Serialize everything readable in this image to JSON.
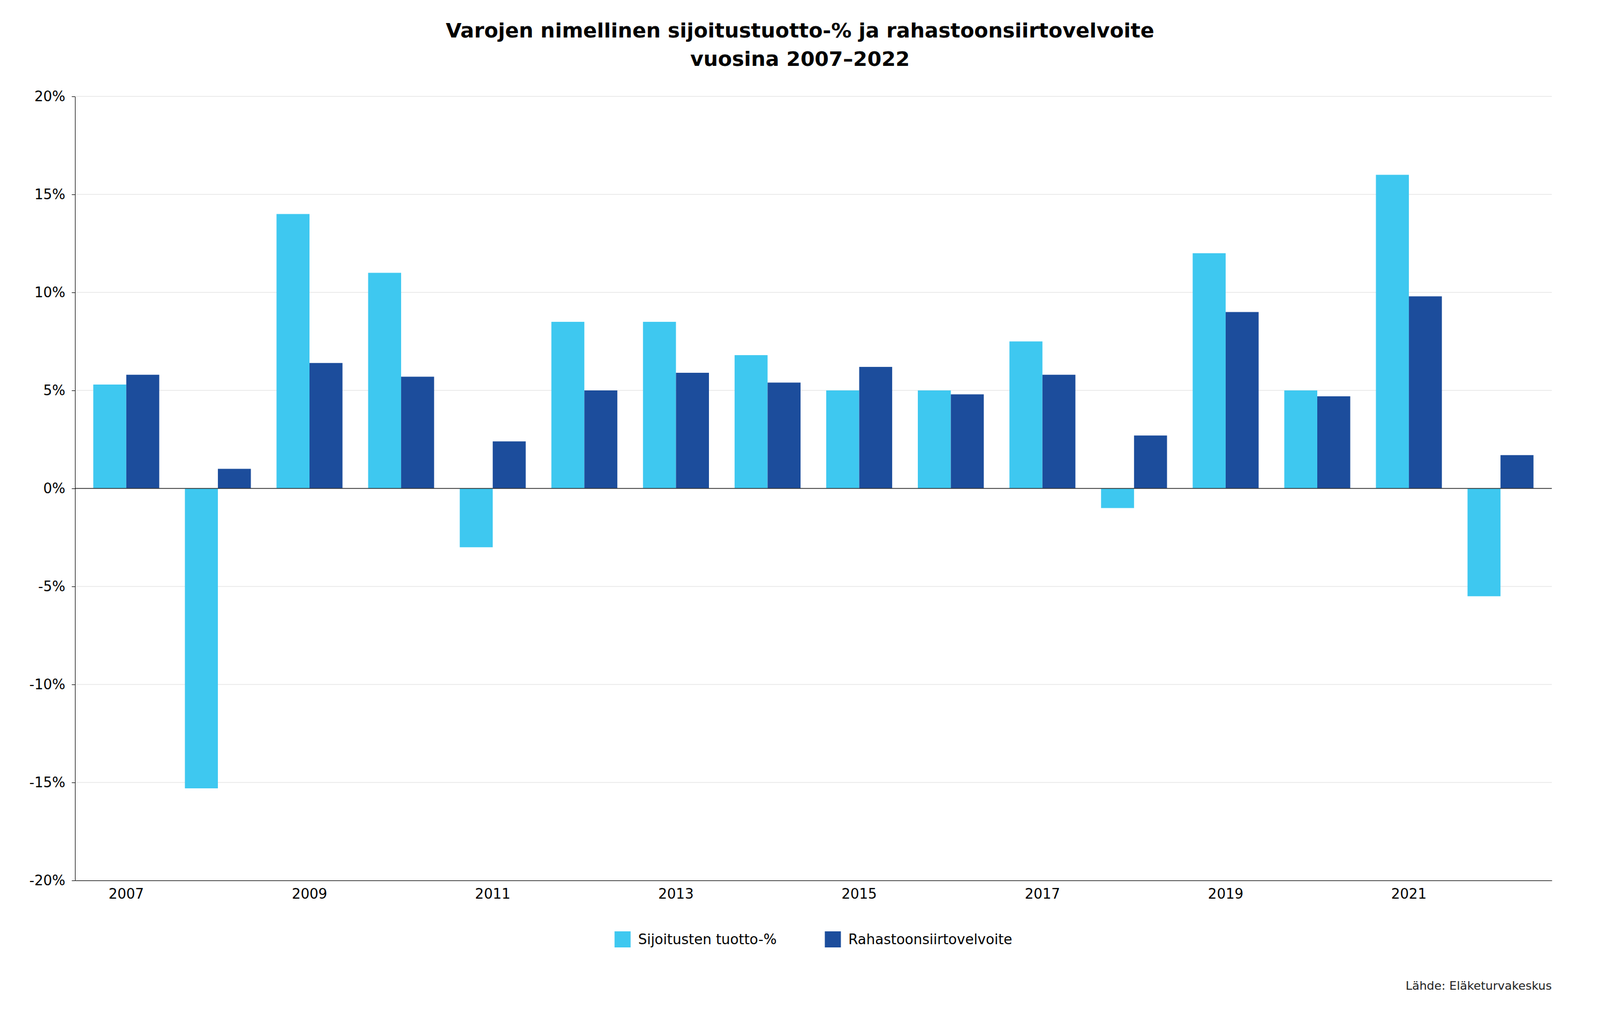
{
  "chart_data": {
    "type": "bar",
    "title": "Varojen nimellinen sijoitustuotto-% ja rahastoonsiirtovelvoite\nvuosina 2007–2022",
    "categories": [
      "2007",
      null,
      "2009",
      null,
      "2011",
      null,
      "2013",
      null,
      "2015",
      null,
      "2017",
      null,
      "2019",
      null,
      "2021",
      null
    ],
    "series": [
      {
        "name": "Sijoitusten tuotto-%",
        "color": "#3EC8F0",
        "values": [
          5.3,
          -15.3,
          14.0,
          11.0,
          -3.0,
          8.5,
          8.5,
          6.8,
          5.0,
          5.0,
          7.5,
          -1.0,
          12.0,
          5.0,
          16.0,
          -5.5
        ]
      },
      {
        "name": "Rahastoonsiirtovelvoite",
        "color": "#1C4D9C",
        "values": [
          5.8,
          1.0,
          6.4,
          5.7,
          2.4,
          5.0,
          5.9,
          5.4,
          6.2,
          4.8,
          5.8,
          2.7,
          9.0,
          4.7,
          9.8,
          1.7
        ]
      }
    ],
    "ylim": [
      -20,
      20
    ],
    "yticks": [
      {
        "value": -20,
        "label": "-20%"
      },
      {
        "value": -15,
        "label": "-15%"
      },
      {
        "value": -10,
        "label": "-10%"
      },
      {
        "value": -5,
        "label": "-5%"
      },
      {
        "value": 0,
        "label": "0%"
      },
      {
        "value": 5,
        "label": "5%"
      },
      {
        "value": 10,
        "label": "10%"
      },
      {
        "value": 15,
        "label": "15%"
      },
      {
        "value": 20,
        "label": "20%"
      }
    ],
    "grid": true,
    "legend": "bottom",
    "annotations": [
      {
        "text": "Lähde: Eläketurvakeskus"
      }
    ]
  }
}
